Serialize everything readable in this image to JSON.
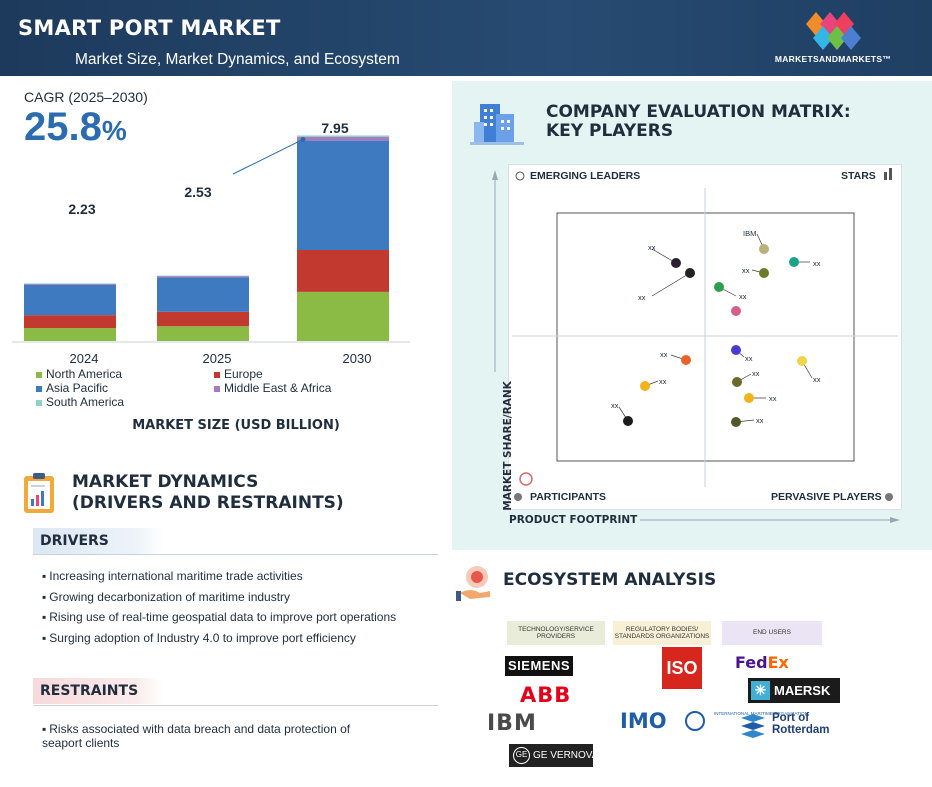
{
  "header": {
    "title": "SMART PORT MARKET",
    "subtitle": "Market Size, Market Dynamics, and Ecosystem",
    "brand": "MARKETSANDMARKETS™"
  },
  "cagr": {
    "label": "CAGR (2025–2030)",
    "value": "25.8",
    "unit": "%"
  },
  "chart_data": {
    "type": "bar",
    "stacked": true,
    "categories": [
      "2024",
      "2025",
      "2030"
    ],
    "totals": [
      2.23,
      2.53,
      7.95
    ],
    "total_labels": [
      "2.23",
      "2.53",
      "7.95"
    ],
    "series": [
      {
        "name": "South America",
        "values": [
          0.02,
          0.02,
          0.06
        ],
        "color": "#8ed1c6"
      },
      {
        "name": "Middle East & Africa",
        "values": [
          0.04,
          0.05,
          0.14
        ],
        "color": "#a979bf"
      },
      {
        "name": "Asia Pacific",
        "values": [
          1.17,
          1.33,
          4.23
        ],
        "color": "#3d7ac0"
      },
      {
        "name": "Europe",
        "values": [
          0.5,
          0.56,
          1.62
        ],
        "color": "#c2392f"
      },
      {
        "name": "North America",
        "values": [
          0.5,
          0.57,
          1.9
        ],
        "color": "#8cbb45"
      }
    ],
    "xlabel": "MARKET SIZE (USD BILLION)",
    "ylim": [
      0,
      8.2
    ],
    "grid": false
  },
  "legend": [
    {
      "label": "North America",
      "color": "#8cbb45"
    },
    {
      "label": "Europe",
      "color": "#c2392f"
    },
    {
      "label": "Asia Pacific",
      "color": "#3d7ac0"
    },
    {
      "label": "Middle East & Africa",
      "color": "#a979bf"
    },
    {
      "label": "South America",
      "color": "#8ed1c6"
    }
  ],
  "dynamics": {
    "title_line1": "MARKET DYNAMICS",
    "title_line2": "(DRIVERS AND RESTRAINTS)",
    "drivers_label": "DRIVERS",
    "drivers": [
      "Increasing international maritime trade activities",
      "Growing decarbonization of maritime industry",
      "Rising use of real-time geospatial data to improve port operations",
      "Surging adoption of Industry 4.0 to improve port efficiency"
    ],
    "restraints_label": "RESTRAINTS",
    "restraints": [
      "Risks associated with data breach and data protection of seaport clients"
    ]
  },
  "matrix": {
    "title_line1": "COMPANY EVALUATION MATRIX:",
    "title_line2": "KEY PLAYERS",
    "quadrants": {
      "top_left": "EMERGING LEADERS",
      "top_right": "STARS",
      "bottom_left": "PARTICIPANTS",
      "bottom_right": "PERVASIVE PLAYERS"
    },
    "y_axis": "MARKET SHARE/RANK",
    "x_axis": "PRODUCT FOOTPRINT",
    "players": [
      {
        "label": "xx",
        "color": "#2b1f33"
      },
      {
        "label": "xx",
        "color": "#222222"
      },
      {
        "label": "IBM",
        "color": "#b9b07a"
      },
      {
        "label": "xx",
        "color": "#6e7a2e"
      },
      {
        "label": "xx",
        "color": "#1aa38a"
      },
      {
        "label": "xx",
        "color": "#2e9d4e"
      },
      {
        "label": "",
        "color": "#d4608a"
      },
      {
        "label": "xx",
        "color": "#e8622c"
      },
      {
        "label": "xx",
        "color": "#4a3bd0"
      },
      {
        "label": "xx",
        "color": "#f0d34a"
      },
      {
        "label": "xx",
        "color": "#6a6a2a"
      },
      {
        "label": "xx",
        "color": "#f2b21a"
      },
      {
        "label": "xx",
        "color": "#f2b21a"
      },
      {
        "label": "xx",
        "color": "#1c1c1c"
      },
      {
        "label": "xx",
        "color": "#55572a"
      }
    ]
  },
  "ecosystem": {
    "title": "ECOSYSTEM ANALYSIS",
    "categories": {
      "tech": "TECHNOLOGY/SERVICE PROVIDERS",
      "reg": "REGULATORY BODIES/ STANDARDS ORGANIZATIONS",
      "end": "END USERS"
    },
    "logos": {
      "siemens": "SIEMENS",
      "abb": "ABB",
      "ibm": "IBM",
      "ge": "GE VERNOVA",
      "ge_mark": "GE",
      "iso": "ISO",
      "imo": "IMO",
      "imo_sub": "INTERNATIONAL MARITIME ORGANIZATION",
      "fedex_fed": "Fed",
      "fedex_ex": "Ex",
      "maersk": "MAERSK",
      "maersk_star": "✳",
      "rotterdam_line1": "Port of",
      "rotterdam_line2": "Rotterdam"
    }
  }
}
